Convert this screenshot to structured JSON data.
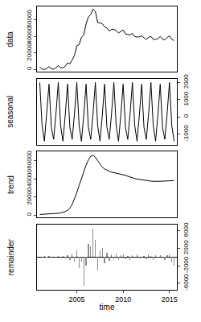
{
  "chart_data": [
    {
      "type": "line",
      "y_label": "data",
      "tick_labels": "y",
      "color": "#000000",
      "grid": false,
      "x": [
        2001,
        2001.25,
        2001.5,
        2001.75,
        2002,
        2002.25,
        2002.5,
        2002.75,
        2003,
        2003.25,
        2003.5,
        2003.75,
        2004,
        2004.25,
        2004.5,
        2004.75,
        2005,
        2005.25,
        2005.5,
        2005.75,
        2006,
        2006.25,
        2006.5,
        2006.75,
        2007,
        2007.25,
        2007.5,
        2007.75,
        2008,
        2008.25,
        2008.5,
        2008.75,
        2009,
        2009.25,
        2009.5,
        2009.75,
        2010,
        2010.25,
        2010.5,
        2010.75,
        2011,
        2011.25,
        2011.5,
        2011.75,
        2012,
        2012.25,
        2012.5,
        2012.75,
        2013,
        2013.25,
        2013.5,
        2013.75,
        2014,
        2014.25,
        2014.5,
        2014.75,
        2015,
        2015.25,
        2015.5
      ],
      "values": [
        3100,
        400,
        -50,
        1300,
        3500,
        850,
        600,
        2000,
        4600,
        1950,
        2100,
        3900,
        7900,
        6800,
        11500,
        17200,
        28500,
        30000,
        38600,
        41600,
        54900,
        63400,
        66200,
        72700,
        70000,
        56500,
        56100,
        55100,
        51400,
        49900,
        46400,
        48300,
        48500,
        46800,
        44000,
        46000,
        47600,
        42900,
        42000,
        41600,
        43500,
        39600,
        39200,
        39300,
        40500,
        38200,
        36200,
        38700,
        39900,
        36300,
        36300,
        37200,
        39800,
        36600,
        35700,
        38500,
        40600,
        36400,
        34800
      ],
      "xlim": [
        2000.7,
        2015.8
      ],
      "xticks": [
        2005,
        2010,
        2015
      ],
      "ylim": [
        -3000,
        76000
      ],
      "yticks": [
        0,
        20000,
        40000,
        60000
      ]
    },
    {
      "type": "line",
      "y_label": "seasonal",
      "tick_labels": "y",
      "color": "#000000",
      "grid": false,
      "x": [
        2001,
        2001.25,
        2001.5,
        2001.75,
        2002,
        2002.25,
        2002.5,
        2002.75,
        2003,
        2003.25,
        2003.5,
        2003.75,
        2004,
        2004.25,
        2004.5,
        2004.75,
        2005,
        2005.25,
        2005.5,
        2005.75,
        2006,
        2006.25,
        2006.5,
        2006.75,
        2007,
        2007.25,
        2007.5,
        2007.75,
        2008,
        2008.25,
        2008.5,
        2008.75,
        2009,
        2009.25,
        2009.5,
        2009.75,
        2010,
        2010.25,
        2010.5,
        2010.75,
        2011,
        2011.25,
        2011.5,
        2011.75,
        2012,
        2012.25,
        2012.5,
        2012.75,
        2013,
        2013.25,
        2013.5,
        2013.75,
        2014,
        2014.25,
        2014.5,
        2014.75,
        2015,
        2015.25,
        2015.5
      ],
      "values": [
        2000,
        -500,
        -1400,
        100,
        1900,
        -600,
        -1300,
        200,
        2000,
        -500,
        -1400,
        100,
        1900,
        -600,
        -1300,
        200,
        2000,
        -500,
        -1400,
        100,
        1900,
        -600,
        -1300,
        200,
        2000,
        -500,
        -1400,
        100,
        1900,
        -600,
        -1300,
        200,
        2000,
        -500,
        -1400,
        100,
        1900,
        -600,
        -1300,
        200,
        2000,
        -500,
        -1400,
        100,
        1900,
        -600,
        -1300,
        200,
        2000,
        -500,
        -1400,
        100,
        1900,
        -600,
        -1300,
        200,
        2000,
        -500,
        -1400
      ],
      "xlim": [
        2000.7,
        2015.8
      ],
      "xticks": [
        2005,
        2010,
        2015
      ],
      "ylim": [
        -1600,
        2200
      ],
      "yticks": [
        -1000,
        0,
        1000,
        2000
      ]
    },
    {
      "type": "line",
      "y_label": "trend",
      "tick_labels": "y",
      "color": "#000000",
      "grid": false,
      "x": [
        2001,
        2001.25,
        2001.5,
        2001.75,
        2002,
        2002.25,
        2002.5,
        2002.75,
        2003,
        2003.25,
        2003.5,
        2003.75,
        2004,
        2004.25,
        2004.5,
        2004.75,
        2005,
        2005.25,
        2005.5,
        2005.75,
        2006,
        2006.25,
        2006.5,
        2006.75,
        2007,
        2007.25,
        2007.5,
        2007.75,
        2008,
        2008.25,
        2008.5,
        2008.75,
        2009,
        2009.25,
        2009.5,
        2009.75,
        2010,
        2010.25,
        2010.5,
        2010.75,
        2011,
        2011.25,
        2011.5,
        2011.75,
        2012,
        2012.25,
        2012.5,
        2012.75,
        2013,
        2013.25,
        2013.5,
        2013.75,
        2014,
        2014.25,
        2014.5,
        2014.75,
        2015,
        2015.25,
        2015.5
      ],
      "values": [
        1000,
        1100,
        1200,
        1300,
        1400,
        1600,
        1800,
        2000,
        2300,
        2700,
        3300,
        4200,
        5500,
        8000,
        12000,
        18000,
        25000,
        33000,
        41000,
        48000,
        55000,
        61000,
        65000,
        66000,
        64000,
        60000,
        56000,
        53000,
        51000,
        49500,
        48500,
        47500,
        47000,
        46500,
        46000,
        45500,
        45000,
        44000,
        43000,
        42000,
        41000,
        40500,
        40000,
        39500,
        39000,
        38500,
        38000,
        37800,
        37600,
        37400,
        37300,
        37300,
        37400,
        37500,
        37700,
        37900,
        38000,
        38100,
        38200
      ],
      "xlim": [
        2000.7,
        2015.8
      ],
      "xticks": [
        2005,
        2010,
        2015
      ],
      "ylim": [
        -2000,
        70000
      ],
      "yticks": [
        0,
        20000,
        40000,
        60000
      ]
    },
    {
      "type": "bar",
      "y_label": "remainder",
      "x_label": "time",
      "tick_labels": true,
      "color": "#8c8c8c",
      "grid": false,
      "x": [
        2001,
        2001.25,
        2001.5,
        2001.75,
        2002,
        2002.25,
        2002.5,
        2002.75,
        2003,
        2003.25,
        2003.5,
        2003.75,
        2004,
        2004.25,
        2004.5,
        2004.75,
        2005,
        2005.25,
        2005.5,
        2005.75,
        2006,
        2006.25,
        2006.5,
        2006.75,
        2007,
        2007.25,
        2007.5,
        2007.75,
        2008,
        2008.25,
        2008.5,
        2008.75,
        2009,
        2009.25,
        2009.5,
        2009.75,
        2010,
        2010.25,
        2010.5,
        2010.75,
        2011,
        2011.25,
        2011.5,
        2011.75,
        2012,
        2012.25,
        2012.5,
        2012.75,
        2013,
        2013.25,
        2013.5,
        2013.75,
        2014,
        2014.25,
        2014.5,
        2014.75,
        2015,
        2015.25,
        2015.5
      ],
      "values": [
        100,
        -200,
        150,
        -100,
        200,
        -150,
        100,
        -200,
        300,
        -250,
        200,
        -400,
        500,
        -600,
        800,
        -1000,
        1500,
        -2500,
        -1000,
        -6500,
        -2000,
        3000,
        2500,
        6500,
        4000,
        -3000,
        1500,
        2000,
        -1500,
        1000,
        -800,
        600,
        -500,
        800,
        -600,
        400,
        700,
        -500,
        300,
        -600,
        500,
        -400,
        600,
        -300,
        -400,
        300,
        -500,
        700,
        300,
        -600,
        400,
        -200,
        500,
        -300,
        -700,
        400,
        600,
        -1200,
        -2000
      ],
      "xlim": [
        2000.7,
        2015.8
      ],
      "xticks": [
        2005,
        2010,
        2015
      ],
      "ylim": [
        -7500,
        7500
      ],
      "yticks": [
        -6000,
        -2000,
        2000,
        6000
      ]
    }
  ]
}
